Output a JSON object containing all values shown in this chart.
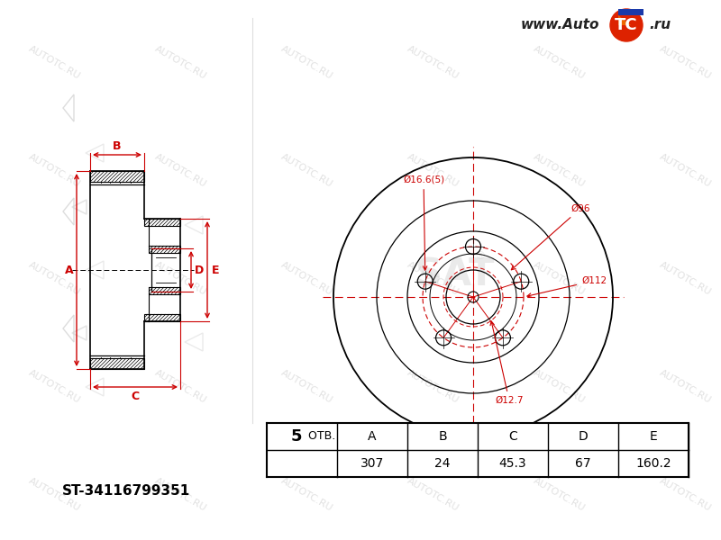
{
  "bg_color": "#ffffff",
  "line_color": "#000000",
  "red_color": "#cc0000",
  "watermark_color": "#cccccc",
  "part_number": "ST-34116799351",
  "table_values": [
    "307",
    "24",
    "45.3",
    "67",
    "160.2"
  ],
  "table_col0": "5 ОТВ.",
  "table_headers": [
    "A",
    "B",
    "C",
    "D",
    "E"
  ],
  "dim_labels": {
    "A": "A",
    "B": "B",
    "C": "C",
    "D": "D",
    "E": "E",
    "d1": "Ø16.6(5)",
    "d96": "Ø96",
    "d112": "Ø112",
    "d12": "Ø12.7"
  },
  "website": "www.AutoTC.ru"
}
